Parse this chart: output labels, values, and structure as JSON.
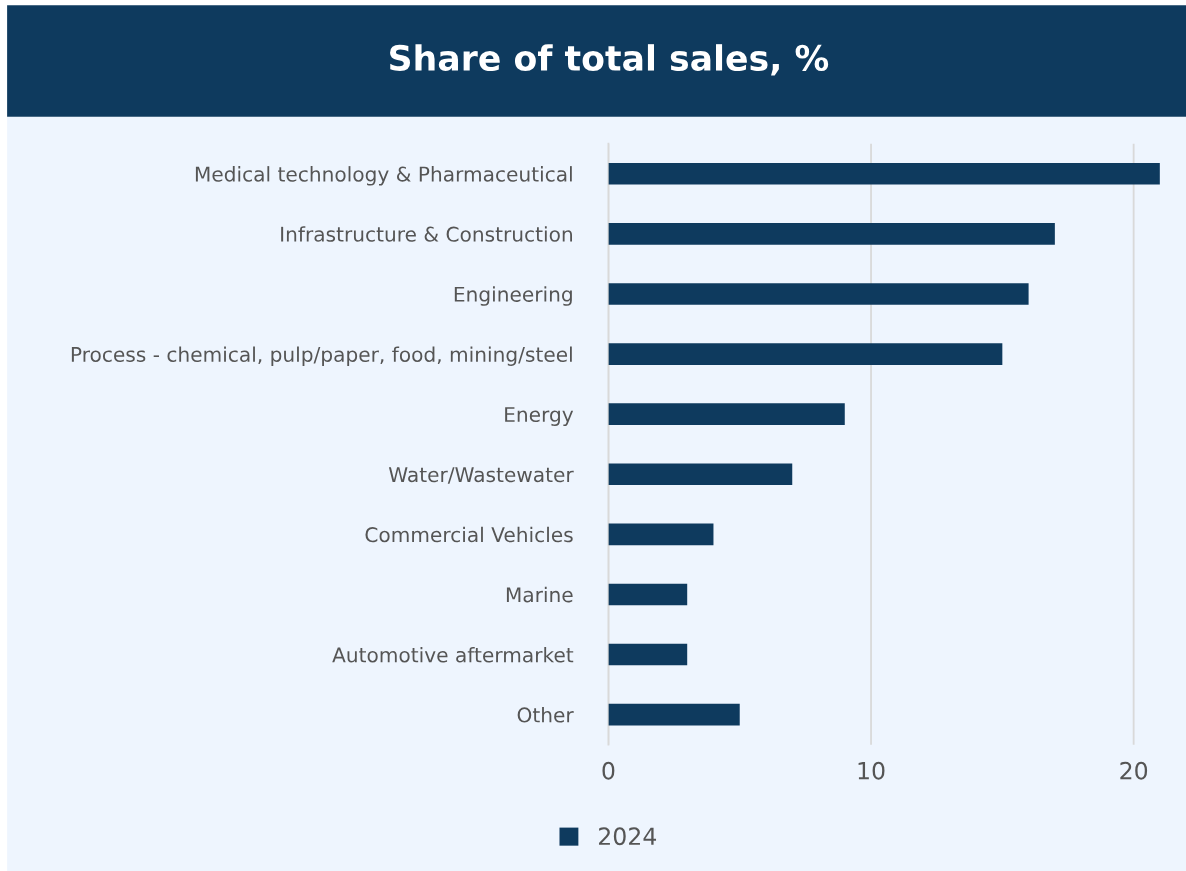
{
  "chart_data": {
    "type": "bar",
    "orientation": "horizontal",
    "title": "Share of total sales, %",
    "categories": [
      "Medical technology & Pharmaceutical",
      "Infrastructure & Construction",
      "Engineering",
      "Process - chemical, pulp/paper, food, mining/steel",
      "Energy",
      "Water/Wastewater",
      "Commercial Vehicles",
      "Marine",
      "Automotive aftermarket",
      "Other"
    ],
    "series": [
      {
        "name": "2024",
        "color": "#0e3a5e",
        "values": [
          21,
          17,
          16,
          15,
          9,
          7,
          4,
          3,
          3,
          5
        ]
      }
    ],
    "xlim": [
      0,
      21
    ],
    "xticks": [
      0,
      10,
      20
    ],
    "grid": "x",
    "legend": "bottom"
  }
}
